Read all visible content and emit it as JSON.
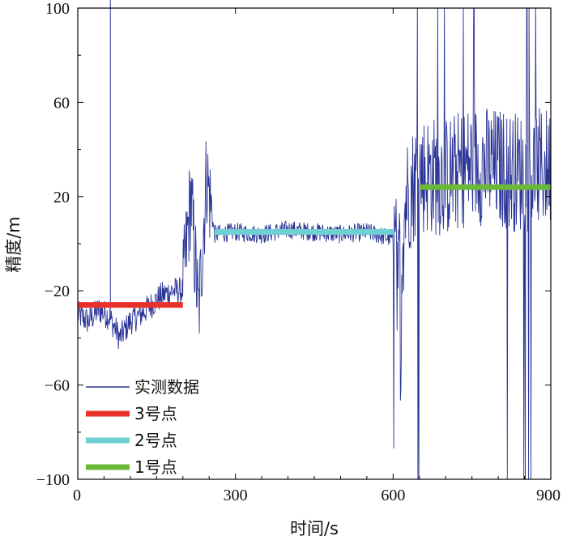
{
  "chart_data": {
    "type": "line",
    "title": "",
    "xlabel": "时间/s",
    "ylabel": "精度/m",
    "xlim": [
      0,
      900
    ],
    "ylim": [
      -100,
      100
    ],
    "x_ticks": [
      0,
      300,
      600,
      900
    ],
    "y_ticks": [
      -100,
      -60,
      -20,
      20,
      60,
      100
    ],
    "x_tick_labels": [
      "0",
      "300",
      "600",
      "900"
    ],
    "y_tick_labels": [
      "−100",
      "−60",
      "−20",
      "20",
      "60",
      "100"
    ],
    "grid": false,
    "legend_position": "bottom-left",
    "series": [
      {
        "name": "实测数据",
        "color": "#2b3596",
        "x": [
          0,
          20,
          40,
          60,
          80,
          100,
          120,
          140,
          160,
          180,
          200,
          215,
          230,
          245,
          260,
          300,
          350,
          400,
          450,
          500,
          550,
          600,
          610,
          625,
          650,
          700,
          750,
          800,
          850,
          900
        ],
        "y": [
          -30,
          -33,
          -28,
          -31,
          -40,
          -33,
          -30,
          -26,
          -22,
          -20,
          -20,
          20,
          -30,
          30,
          4,
          5,
          4,
          6,
          5,
          4,
          5,
          2,
          -15,
          20,
          30,
          28,
          34,
          32,
          30,
          33
        ]
      },
      {
        "name": "3号点",
        "color": "#e8312a",
        "x": [
          0,
          200
        ],
        "y": [
          -26,
          -26
        ]
      },
      {
        "name": "2号点",
        "color": "#6fcfd2",
        "x": [
          260,
          600
        ],
        "y": [
          5,
          5
        ]
      },
      {
        "name": "1号点",
        "color": "#6cb83a",
        "x": [
          650,
          900
        ],
        "y": [
          24,
          24
        ]
      }
    ]
  }
}
